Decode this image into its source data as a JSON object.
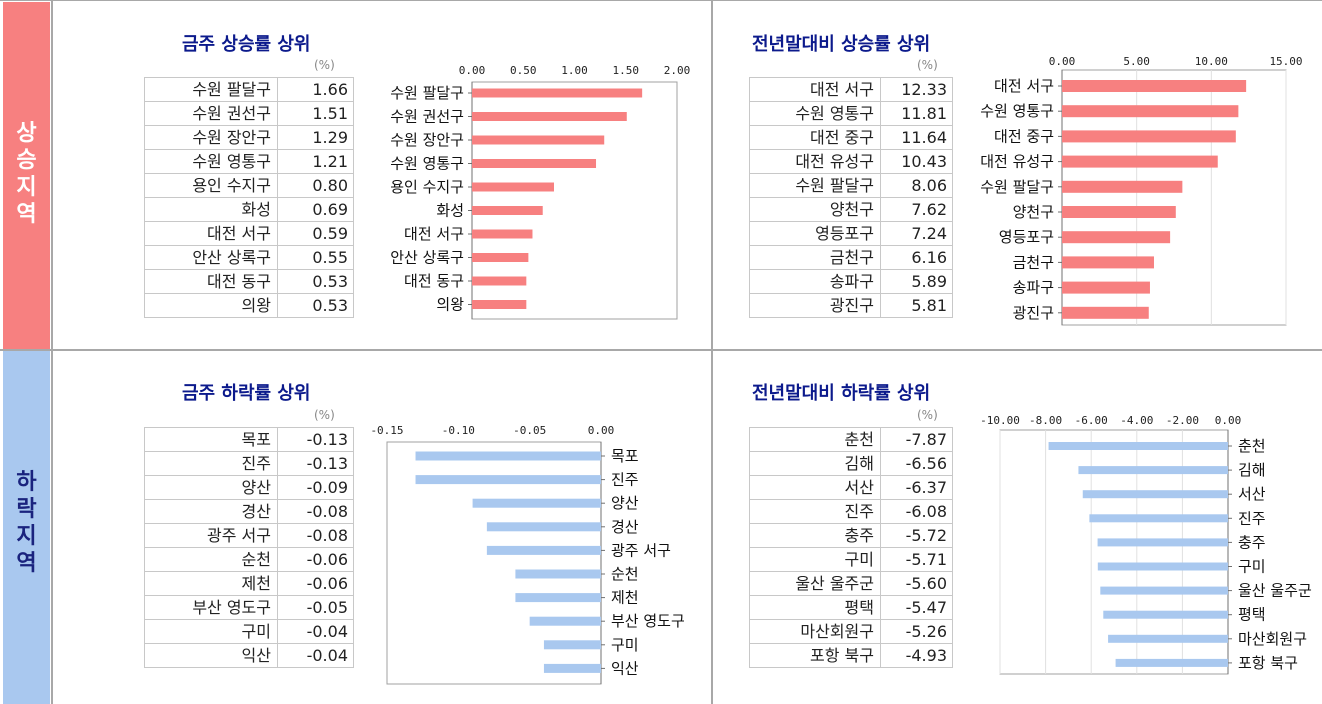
{
  "side_labels": {
    "up": "상승지역",
    "down": "하락지역"
  },
  "unit": "(%)",
  "panels": {
    "weekly_up": {
      "title": "금주 상승률 상위",
      "rows": [
        {
          "region": "수원 팔달구",
          "value": "1.66"
        },
        {
          "region": "수원 권선구",
          "value": "1.51"
        },
        {
          "region": "수원 장안구",
          "value": "1.29"
        },
        {
          "region": "수원 영통구",
          "value": "1.21"
        },
        {
          "region": "용인 수지구",
          "value": "0.80"
        },
        {
          "region": "화성",
          "value": "0.69"
        },
        {
          "region": "대전 서구",
          "value": "0.59"
        },
        {
          "region": "안산 상록구",
          "value": "0.55"
        },
        {
          "region": "대전 동구",
          "value": "0.53"
        },
        {
          "region": "의왕",
          "value": "0.53"
        }
      ]
    },
    "ytd_up": {
      "title": "전년말대비 상승률 상위",
      "rows": [
        {
          "region": "대전 서구",
          "value": "12.33"
        },
        {
          "region": "수원 영통구",
          "value": "11.81"
        },
        {
          "region": "대전 중구",
          "value": "11.64"
        },
        {
          "region": "대전 유성구",
          "value": "10.43"
        },
        {
          "region": "수원 팔달구",
          "value": "8.06"
        },
        {
          "region": "양천구",
          "value": "7.62"
        },
        {
          "region": "영등포구",
          "value": "7.24"
        },
        {
          "region": "금천구",
          "value": "6.16"
        },
        {
          "region": "송파구",
          "value": "5.89"
        },
        {
          "region": "광진구",
          "value": "5.81"
        }
      ]
    },
    "weekly_down": {
      "title": "금주 하락률 상위",
      "rows": [
        {
          "region": "목포",
          "value": "-0.13"
        },
        {
          "region": "진주",
          "value": "-0.13"
        },
        {
          "region": "양산",
          "value": "-0.09"
        },
        {
          "region": "경산",
          "value": "-0.08"
        },
        {
          "region": "광주 서구",
          "value": "-0.08"
        },
        {
          "region": "순천",
          "value": "-0.06"
        },
        {
          "region": "제천",
          "value": "-0.06"
        },
        {
          "region": "부산 영도구",
          "value": "-0.05"
        },
        {
          "region": "구미",
          "value": "-0.04"
        },
        {
          "region": "익산",
          "value": "-0.04"
        }
      ]
    },
    "ytd_down": {
      "title": "전년말대비 하락률 상위",
      "rows": [
        {
          "region": "춘천",
          "value": "-7.87"
        },
        {
          "region": "김해",
          "value": "-6.56"
        },
        {
          "region": "서산",
          "value": "-6.37"
        },
        {
          "region": "진주",
          "value": "-6.08"
        },
        {
          "region": "충주",
          "value": "-5.72"
        },
        {
          "region": "구미",
          "value": "-5.71"
        },
        {
          "region": "울산 울주군",
          "value": "-5.60"
        },
        {
          "region": "평택",
          "value": "-5.47"
        },
        {
          "region": "마산회원구",
          "value": "-5.26"
        },
        {
          "region": "포항 북구",
          "value": "-4.93"
        }
      ]
    }
  },
  "chart_data": [
    {
      "id": "weekly_up",
      "type": "bar",
      "orientation": "horizontal",
      "color": "#f78080",
      "categories": [
        "수원 팔달구",
        "수원 권선구",
        "수원 장안구",
        "수원 영통구",
        "용인 수지구",
        "화성",
        "대전 서구",
        "안산 상록구",
        "대전 동구",
        "의왕"
      ],
      "values": [
        1.66,
        1.51,
        1.29,
        1.21,
        0.8,
        0.69,
        0.59,
        0.55,
        0.53,
        0.53
      ],
      "xlim": [
        0,
        2
      ],
      "ticks": [
        "0.00",
        "0.50",
        "1.00",
        "1.50",
        "2.00"
      ],
      "title": "금주 상승률 상위"
    },
    {
      "id": "ytd_up",
      "type": "bar",
      "orientation": "horizontal",
      "color": "#f78080",
      "categories": [
        "대전 서구",
        "수원 영통구",
        "대전 중구",
        "대전 유성구",
        "수원 팔달구",
        "양천구",
        "영등포구",
        "금천구",
        "송파구",
        "광진구"
      ],
      "values": [
        12.33,
        11.81,
        11.64,
        10.43,
        8.06,
        7.62,
        7.24,
        6.16,
        5.89,
        5.81
      ],
      "xlim": [
        0,
        15
      ],
      "ticks": [
        "0.00",
        "5.00",
        "10.00",
        "15.00"
      ],
      "title": "전년말대비 상승률 상위"
    },
    {
      "id": "weekly_down",
      "type": "bar",
      "orientation": "horizontal",
      "color": "#a9c8ef",
      "categories": [
        "목포",
        "진주",
        "양산",
        "경산",
        "광주 서구",
        "순천",
        "제천",
        "부산 영도구",
        "구미",
        "익산"
      ],
      "values": [
        -0.13,
        -0.13,
        -0.09,
        -0.08,
        -0.08,
        -0.06,
        -0.06,
        -0.05,
        -0.04,
        -0.04
      ],
      "xlim": [
        -0.15,
        0
      ],
      "ticks": [
        "-0.15",
        "-0.10",
        "-0.05",
        "0.00"
      ],
      "title": "금주 하락률 상위"
    },
    {
      "id": "ytd_down",
      "type": "bar",
      "orientation": "horizontal",
      "color": "#a9c8ef",
      "categories": [
        "춘천",
        "김해",
        "서산",
        "진주",
        "충주",
        "구미",
        "울산 울주군",
        "평택",
        "마산회원구",
        "포항 북구"
      ],
      "values": [
        -7.87,
        -6.56,
        -6.37,
        -6.08,
        -5.72,
        -5.71,
        -5.6,
        -5.47,
        -5.26,
        -4.93
      ],
      "xlim": [
        -10,
        0
      ],
      "ticks": [
        "-10.00",
        "-8.00",
        "-6.00",
        "-4.00",
        "-2.00",
        "0.00"
      ],
      "title": "전년말대비 하락률 상위"
    }
  ]
}
